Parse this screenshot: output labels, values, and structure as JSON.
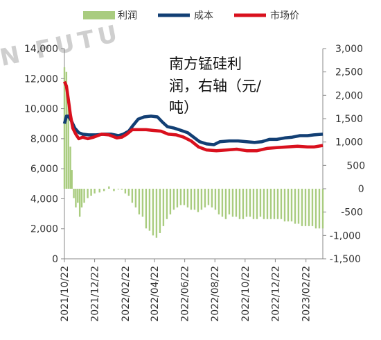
{
  "watermark": "N FUTU",
  "chart_data": {
    "type": "line",
    "title": "",
    "annotation_lines": [
      "南方锰硅利",
      "润，右轴（元/",
      "吨）"
    ],
    "legend": [
      "利润",
      "成本",
      "市场价"
    ],
    "colors": {
      "profit": "#a9cc7f",
      "cost": "#123f74",
      "price": "#d9101d",
      "axis": "#888888"
    },
    "left_axis": {
      "min": 0,
      "max": 14000,
      "ticks": [
        "0",
        "2,000",
        "4,000",
        "6,000",
        "8,000",
        "10,000",
        "12,000",
        "14,000"
      ]
    },
    "right_axis": {
      "min": -1500,
      "max": 3000,
      "ticks": [
        "-1,500",
        "-1,000",
        "-500",
        "0",
        "500",
        "1,000",
        "1,500",
        "2,000",
        "2,500",
        "3,000"
      ]
    },
    "x_range": [
      "2021/10/22",
      "2023/03/28"
    ],
    "x_tick_labels": [
      "2021/10/22",
      "2021/12/22",
      "2022/02/22",
      "2022/04/22",
      "2022/06/22",
      "2022/08/22",
      "2022/10/22",
      "2022/12/22",
      "2023/02/22"
    ],
    "series": [
      {
        "name": "成本",
        "axis": "left",
        "points": [
          [
            "2021/10/22",
            9000
          ],
          [
            "2021/10/26",
            9500
          ],
          [
            "2021/10/30",
            9500
          ],
          [
            "2021/11/05",
            9200
          ],
          [
            "2021/11/12",
            8700
          ],
          [
            "2021/11/20",
            8400
          ],
          [
            "2021/11/28",
            8300
          ],
          [
            "2021/12/10",
            8250
          ],
          [
            "2021/12/25",
            8250
          ],
          [
            "2022/01/10",
            8300
          ],
          [
            "2022/01/25",
            8300
          ],
          [
            "2022/02/08",
            8200
          ],
          [
            "2022/02/18",
            8300
          ],
          [
            "2022/03/01",
            8500
          ],
          [
            "2022/03/10",
            8900
          ],
          [
            "2022/03/20",
            9300
          ],
          [
            "2022/04/01",
            9450
          ],
          [
            "2022/04/15",
            9500
          ],
          [
            "2022/04/28",
            9450
          ],
          [
            "2022/05/08",
            9100
          ],
          [
            "2022/05/18",
            8800
          ],
          [
            "2022/06/01",
            8700
          ],
          [
            "2022/06/15",
            8550
          ],
          [
            "2022/06/28",
            8400
          ],
          [
            "2022/07/10",
            8100
          ],
          [
            "2022/07/22",
            7800
          ],
          [
            "2022/08/05",
            7650
          ],
          [
            "2022/08/20",
            7600
          ],
          [
            "2022/09/01",
            7800
          ],
          [
            "2022/09/20",
            7850
          ],
          [
            "2022/10/08",
            7850
          ],
          [
            "2022/10/25",
            7800
          ],
          [
            "2022/11/10",
            7750
          ],
          [
            "2022/11/25",
            7800
          ],
          [
            "2022/12/10",
            7950
          ],
          [
            "2022/12/25",
            7950
          ],
          [
            "2023/01/10",
            8050
          ],
          [
            "2023/01/25",
            8100
          ],
          [
            "2023/02/10",
            8200
          ],
          [
            "2023/02/25",
            8200
          ],
          [
            "2023/03/10",
            8250
          ],
          [
            "2023/03/28",
            8300
          ]
        ]
      },
      {
        "name": "市场价",
        "axis": "left",
        "points": [
          [
            "2021/10/22",
            11800
          ],
          [
            "2021/10/26",
            11500
          ],
          [
            "2021/10/30",
            10600
          ],
          [
            "2021/11/03",
            9600
          ],
          [
            "2021/11/08",
            8700
          ],
          [
            "2021/11/14",
            8300
          ],
          [
            "2021/11/20",
            8000
          ],
          [
            "2021/11/28",
            8100
          ],
          [
            "2021/12/08",
            8000
          ],
          [
            "2021/12/20",
            8100
          ],
          [
            "2022/01/05",
            8300
          ],
          [
            "2022/01/20",
            8250
          ],
          [
            "2022/02/05",
            8050
          ],
          [
            "2022/02/15",
            8100
          ],
          [
            "2022/02/25",
            8300
          ],
          [
            "2022/03/08",
            8600
          ],
          [
            "2022/03/20",
            8600
          ],
          [
            "2022/04/05",
            8600
          ],
          [
            "2022/04/20",
            8550
          ],
          [
            "2022/05/05",
            8500
          ],
          [
            "2022/05/20",
            8300
          ],
          [
            "2022/06/05",
            8250
          ],
          [
            "2022/06/20",
            8100
          ],
          [
            "2022/07/05",
            7850
          ],
          [
            "2022/07/20",
            7450
          ],
          [
            "2022/08/05",
            7250
          ],
          [
            "2022/08/25",
            7200
          ],
          [
            "2022/09/15",
            7250
          ],
          [
            "2022/10/05",
            7300
          ],
          [
            "2022/10/25",
            7200
          ],
          [
            "2022/11/15",
            7200
          ],
          [
            "2022/12/05",
            7350
          ],
          [
            "2022/12/25",
            7400
          ],
          [
            "2023/01/15",
            7450
          ],
          [
            "2023/02/05",
            7500
          ],
          [
            "2023/02/25",
            7450
          ],
          [
            "2023/03/10",
            7450
          ],
          [
            "2023/03/28",
            7550
          ]
        ]
      },
      {
        "name": "利润",
        "axis": "right",
        "style": "bars",
        "points": [
          [
            "2021/10/22",
            2600
          ],
          [
            "2021/10/26",
            2500
          ],
          [
            "2021/10/30",
            1800
          ],
          [
            "2021/11/03",
            900
          ],
          [
            "2021/11/06",
            400
          ],
          [
            "2021/11/10",
            -200
          ],
          [
            "2021/11/14",
            -400
          ],
          [
            "2021/11/18",
            -300
          ],
          [
            "2021/11/22",
            -600
          ],
          [
            "2021/11/26",
            -400
          ],
          [
            "2021/12/01",
            -300
          ],
          [
            "2021/12/08",
            -200
          ],
          [
            "2021/12/15",
            -150
          ],
          [
            "2021/12/22",
            -100
          ],
          [
            "2022/01/01",
            -80
          ],
          [
            "2022/01/10",
            -50
          ],
          [
            "2022/01/20",
            50
          ],
          [
            "2022/01/30",
            -50
          ],
          [
            "2022/02/08",
            0
          ],
          [
            "2022/02/15",
            -20
          ],
          [
            "2022/02/22",
            -100
          ],
          [
            "2022/03/01",
            -150
          ],
          [
            "2022/03/08",
            -300
          ],
          [
            "2022/03/15",
            -400
          ],
          [
            "2022/03/22",
            -550
          ],
          [
            "2022/03/29",
            -600
          ],
          [
            "2022/04/05",
            -850
          ],
          [
            "2022/04/12",
            -900
          ],
          [
            "2022/04/19",
            -1000
          ],
          [
            "2022/04/26",
            -1050
          ],
          [
            "2022/05/03",
            -950
          ],
          [
            "2022/05/10",
            -800
          ],
          [
            "2022/05/17",
            -650
          ],
          [
            "2022/05/24",
            -550
          ],
          [
            "2022/05/31",
            -450
          ],
          [
            "2022/06/07",
            -400
          ],
          [
            "2022/06/14",
            -350
          ],
          [
            "2022/06/21",
            -350
          ],
          [
            "2022/06/28",
            -400
          ],
          [
            "2022/07/05",
            -450
          ],
          [
            "2022/07/12",
            -450
          ],
          [
            "2022/07/19",
            -500
          ],
          [
            "2022/07/26",
            -450
          ],
          [
            "2022/08/02",
            -400
          ],
          [
            "2022/08/09",
            -350
          ],
          [
            "2022/08/16",
            -400
          ],
          [
            "2022/08/23",
            -450
          ],
          [
            "2022/08/30",
            -550
          ],
          [
            "2022/09/06",
            -600
          ],
          [
            "2022/09/13",
            -650
          ],
          [
            "2022/09/20",
            -550
          ],
          [
            "2022/09/27",
            -600
          ],
          [
            "2022/10/04",
            -600
          ],
          [
            "2022/10/11",
            -650
          ],
          [
            "2022/10/18",
            -650
          ],
          [
            "2022/10/25",
            -600
          ],
          [
            "2022/11/01",
            -600
          ],
          [
            "2022/11/08",
            -650
          ],
          [
            "2022/11/15",
            -650
          ],
          [
            "2022/11/22",
            -600
          ],
          [
            "2022/11/29",
            -650
          ],
          [
            "2022/12/06",
            -650
          ],
          [
            "2022/12/13",
            -650
          ],
          [
            "2022/12/20",
            -650
          ],
          [
            "2022/12/27",
            -650
          ],
          [
            "2023/01/03",
            -650
          ],
          [
            "2023/01/10",
            -700
          ],
          [
            "2023/01/17",
            -700
          ],
          [
            "2023/01/24",
            -700
          ],
          [
            "2023/01/31",
            -750
          ],
          [
            "2023/02/07",
            -750
          ],
          [
            "2023/02/14",
            -800
          ],
          [
            "2023/02/21",
            -800
          ],
          [
            "2023/02/28",
            -800
          ],
          [
            "2023/03/07",
            -800
          ],
          [
            "2023/03/14",
            -850
          ],
          [
            "2023/03/21",
            -850
          ],
          [
            "2023/03/28",
            -850
          ]
        ]
      }
    ]
  }
}
